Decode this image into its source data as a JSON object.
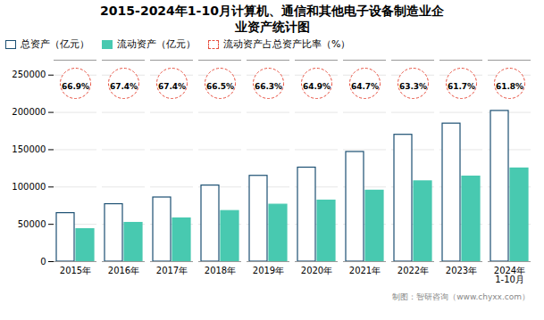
{
  "chart_data": {
    "type": "bar",
    "title": "2015-2024年1-10月计算机、通信和其他电子设备制造业企\n业资产统计图",
    "categories": [
      "2015年",
      "2016年",
      "2017年",
      "2018年",
      "2019年",
      "2020年",
      "2021年",
      "2022年",
      "2023年",
      "2024年\n1-10月"
    ],
    "series": [
      {
        "name": "总资产（亿元）",
        "color": "#1b4f72",
        "values": [
          65000,
          77000,
          86000,
          102000,
          115000,
          126000,
          147000,
          170000,
          185000,
          202000
        ]
      },
      {
        "name": "流动资产（亿元）",
        "color": "#48c9b0",
        "values": [
          43500,
          51900,
          57900,
          67800,
          76300,
          81800,
          95100,
          107610,
          113950,
          124836
        ]
      },
      {
        "name": "流动资产占总资产比率（%）",
        "type": "label",
        "color": "#e74c3c",
        "values": [
          66.9,
          67.4,
          67.4,
          66.5,
          66.3,
          64.9,
          64.7,
          63.3,
          61.7,
          61.8
        ],
        "value_labels": [
          "66.9%",
          "67.4%",
          "67.4%",
          "66.5%",
          "66.3%",
          "64.9%",
          "64.7%",
          "63.3%",
          "61.7%",
          "61.8%"
        ]
      }
    ],
    "ylim": [
      0,
      270000
    ],
    "yticks": [
      0,
      50000,
      100000,
      150000,
      200000,
      250000
    ],
    "grid": true,
    "legend": "upper left",
    "caption": "制图：智研咨询（www.chyxx.com）"
  }
}
